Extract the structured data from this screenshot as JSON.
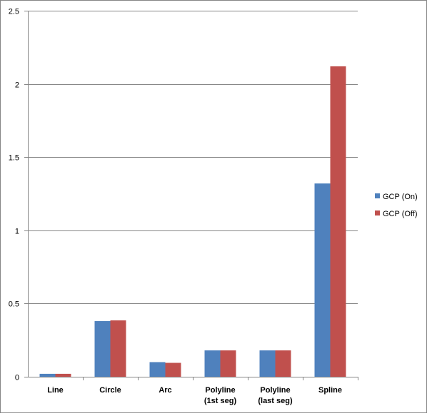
{
  "chart_data": {
    "type": "bar",
    "categories": [
      "Line",
      "Circle",
      "Arc",
      "Polyline\n(1st seg)",
      "Polyline\n(last seg)",
      "Spline"
    ],
    "series": [
      {
        "name": "GCP (On)",
        "color": "#4f81bd",
        "values": [
          0.02,
          0.38,
          0.1,
          0.18,
          0.18,
          1.32
        ]
      },
      {
        "name": "GCP (Off)",
        "color": "#c0504d",
        "values": [
          0.02,
          0.385,
          0.095,
          0.18,
          0.18,
          2.12
        ]
      }
    ],
    "yticks": [
      "0",
      "0.5",
      "1",
      "1.5",
      "2",
      "2.5"
    ],
    "ylim": [
      0,
      2.5
    ],
    "grid": true,
    "legend_position": "right"
  }
}
